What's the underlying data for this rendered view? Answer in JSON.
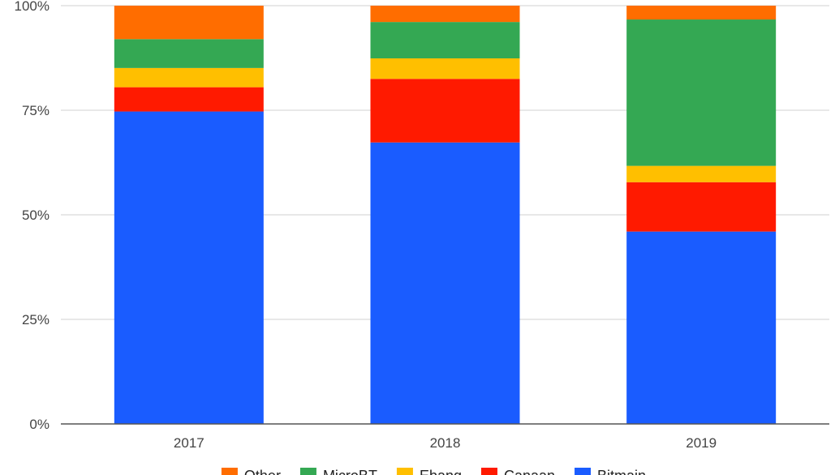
{
  "chart_data": {
    "type": "bar",
    "stacked": true,
    "percent": true,
    "categories": [
      "2017",
      "2018",
      "2019"
    ],
    "ylim": [
      0,
      100
    ],
    "yticks": [
      "0%",
      "25%",
      "50%",
      "75%",
      "100%"
    ],
    "ytick_values": [
      0,
      25,
      50,
      75,
      100
    ],
    "grid": true,
    "legend_position": "bottom",
    "series": [
      {
        "name": "Bitmain",
        "color": "#1a5cff",
        "values": [
          74.7,
          67.3,
          46.0
        ]
      },
      {
        "name": "Canaan",
        "color": "#ff1a00",
        "values": [
          5.8,
          15.2,
          11.8
        ]
      },
      {
        "name": "Ebang",
        "color": "#ffbf00",
        "values": [
          4.6,
          4.9,
          3.9
        ]
      },
      {
        "name": "MicroBT",
        "color": "#34a853",
        "values": [
          6.9,
          8.7,
          35.0
        ]
      },
      {
        "name": "Other",
        "color": "#ff6d00",
        "values": [
          8.0,
          3.9,
          3.3
        ]
      }
    ],
    "legend_order": [
      "Other",
      "MicroBT",
      "Ebang",
      "Canaan",
      "Bitmain"
    ]
  }
}
